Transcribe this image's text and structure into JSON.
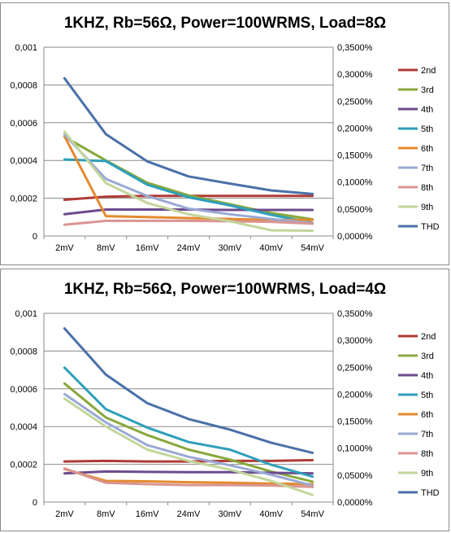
{
  "chart_data": [
    {
      "type": "line",
      "title": "1KHZ, Rb=56Ω, Power=100WRMS, Load=8Ω",
      "xlabel": "",
      "ylabel": "",
      "categories": [
        "2mV",
        "8mV",
        "16mV",
        "24mV",
        "30mV",
        "40mV",
        "54mV"
      ],
      "ylim": [
        0,
        0.001
      ],
      "y_ticks": [
        "0",
        "0,0002",
        "0,0004",
        "0,0006",
        "0,0008",
        "0,001"
      ],
      "y2lim": [
        0,
        0.35
      ],
      "y2_ticks": [
        "0,0000%",
        "0,0500%",
        "0,1000%",
        "0,1500%",
        "0,2000%",
        "0,2500%",
        "0,3000%",
        "0,3500%"
      ],
      "grid": true,
      "legend_position": "right",
      "series": [
        {
          "name": "2nd",
          "color": "#b03a36",
          "axis": "left",
          "values": [
            0.000192,
            0.000208,
            0.000212,
            0.000212,
            0.000212,
            0.000212,
            0.000212
          ]
        },
        {
          "name": "3rd",
          "color": "#88a83c",
          "axis": "left",
          "values": [
            0.000525,
            0.0004,
            0.000282,
            0.000215,
            0.000168,
            0.000122,
            8.8e-05
          ]
        },
        {
          "name": "4th",
          "color": "#6c4b8e",
          "axis": "left",
          "values": [
            0.000115,
            0.00014,
            0.00014,
            0.00014,
            0.000138,
            0.000138,
            0.000138
          ]
        },
        {
          "name": "5th",
          "color": "#2e9fba",
          "axis": "left",
          "values": [
            0.000405,
            0.000397,
            0.000272,
            0.000205,
            0.000162,
            0.000112,
            7e-05
          ]
        },
        {
          "name": "6th",
          "color": "#e48a2f",
          "axis": "left",
          "values": [
            0.000528,
            0.000105,
            0.0001,
            9.5e-05,
            9e-05,
            8.5e-05,
            8.5e-05
          ]
        },
        {
          "name": "7th",
          "color": "#9aa9d4",
          "axis": "left",
          "values": [
            0.000538,
            0.000302,
            0.000212,
            0.000145,
            0.000115,
            9e-05,
            6.8e-05
          ]
        },
        {
          "name": "8th",
          "color": "#d99592",
          "axis": "left",
          "values": [
            6e-05,
            8e-05,
            8e-05,
            8e-05,
            7.8e-05,
            7.5e-05,
            6.5e-05
          ]
        },
        {
          "name": "9th",
          "color": "#c3d69b",
          "axis": "left",
          "values": [
            0.000552,
            0.00028,
            0.000175,
            0.000115,
            7.8e-05,
            3e-05,
            2.8e-05
          ]
        },
        {
          "name": "THD",
          "color": "#4a70a8",
          "axis": "right",
          "values": [
            0.2923,
            0.1887,
            0.1383,
            0.1104,
            0.0971,
            0.0845,
            0.0779
          ]
        }
      ]
    },
    {
      "type": "line",
      "title": "1KHZ, Rb=56Ω, Power=100WRMS, Load=4Ω",
      "xlabel": "",
      "ylabel": "",
      "categories": [
        "2mV",
        "8mV",
        "16mV",
        "24mV",
        "30mV",
        "40mV",
        "54mV"
      ],
      "ylim": [
        0,
        0.001
      ],
      "y_ticks": [
        "0",
        "0,0002",
        "0,0004",
        "0,0006",
        "0,0008",
        "0,001"
      ],
      "y2lim": [
        0,
        0.35
      ],
      "y2_ticks": [
        "0,0000%",
        "0,0500%",
        "0,1000%",
        "0,1500%",
        "0,2000%",
        "0,2500%",
        "0,3000%",
        "0,3500%"
      ],
      "grid": true,
      "legend_position": "right",
      "series": [
        {
          "name": "2nd",
          "color": "#b03a36",
          "axis": "left",
          "values": [
            0.000215,
            0.000218,
            0.000215,
            0.000215,
            0.000218,
            0.000218,
            0.000222
          ]
        },
        {
          "name": "3rd",
          "color": "#88a83c",
          "axis": "left",
          "values": [
            0.000628,
            0.000448,
            0.000355,
            0.000278,
            0.000225,
            0.000162,
            0.000108
          ]
        },
        {
          "name": "4th",
          "color": "#6c4b8e",
          "axis": "left",
          "values": [
            0.000152,
            0.000162,
            0.00016,
            0.000158,
            0.000158,
            0.000155,
            0.000152
          ]
        },
        {
          "name": "5th",
          "color": "#2e9fba",
          "axis": "left",
          "values": [
            0.000712,
            0.000492,
            0.000395,
            0.000318,
            0.000278,
            0.000198,
            0.000135
          ]
        },
        {
          "name": "6th",
          "color": "#e48a2f",
          "axis": "left",
          "values": [
            0.000175,
            0.000112,
            0.00011,
            0.000105,
            0.000102,
            9.8e-05,
            9.5e-05
          ]
        },
        {
          "name": "7th",
          "color": "#9aa9d4",
          "axis": "left",
          "values": [
            0.000572,
            0.000422,
            0.000302,
            0.00024,
            0.000195,
            0.000145,
            8.8e-05
          ]
        },
        {
          "name": "8th",
          "color": "#d99592",
          "axis": "left",
          "values": [
            0.000178,
            0.000102,
            9.5e-05,
            9e-05,
            9e-05,
            8.8e-05,
            8e-05
          ]
        },
        {
          "name": "9th",
          "color": "#c3d69b",
          "axis": "left",
          "values": [
            0.000548,
            0.0004,
            0.000278,
            0.000218,
            0.000172,
            0.000112,
            3.8e-05
          ]
        },
        {
          "name": "THD",
          "color": "#4a70a8",
          "axis": "right",
          "values": [
            0.3219,
            0.2363,
            0.1834,
            0.154,
            0.1344,
            0.11,
            0.0912
          ]
        }
      ]
    }
  ]
}
